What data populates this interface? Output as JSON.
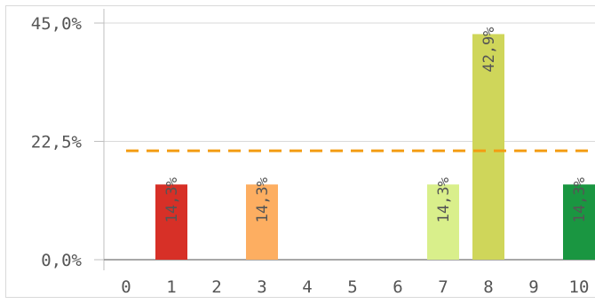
{
  "chart_data": {
    "type": "bar",
    "categories": [
      "0",
      "1",
      "2",
      "3",
      "4",
      "5",
      "6",
      "7",
      "8",
      "9",
      "10"
    ],
    "values": [
      0,
      14.3,
      0,
      14.3,
      0,
      0,
      0,
      14.3,
      42.9,
      0,
      14.3
    ],
    "data_labels": [
      "",
      "14,3%",
      "",
      "14,3%",
      "",
      "",
      "",
      "14,3%",
      "42,9%",
      "",
      "14,3%"
    ],
    "bar_colors": [
      "",
      "#d73027",
      "",
      "#fdae61",
      "",
      "",
      "",
      "#d9ef8b",
      "#cfd65a",
      "",
      "#1a9641"
    ],
    "y_ticks": [
      {
        "value": 0,
        "label": "0,0%"
      },
      {
        "value": 22.5,
        "label": "22,5%"
      },
      {
        "value": 45,
        "label": "45,0%"
      }
    ],
    "ylim": [
      0,
      45
    ],
    "reference_line": {
      "value": 20.7,
      "color": "#f39c12",
      "style": "dashed"
    },
    "grid": true,
    "title": "",
    "xlabel": "",
    "ylabel": ""
  }
}
